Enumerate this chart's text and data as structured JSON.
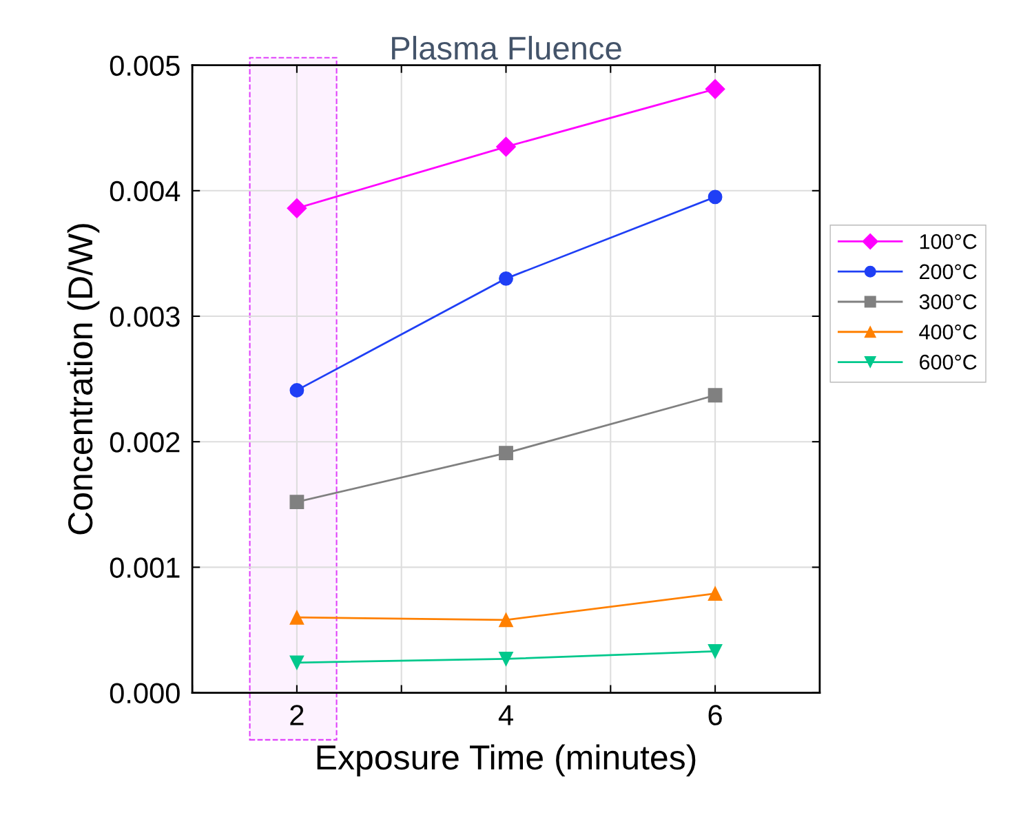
{
  "chart_data": {
    "type": "line",
    "title": "Plasma Fluence",
    "xlabel": "Exposure Time (minutes)",
    "ylabel": "Concentration (D/W)",
    "x": [
      2,
      4,
      6
    ],
    "series": [
      {
        "name": "100°C",
        "color": "#ff00ff",
        "marker": "diamond",
        "values": [
          0.00386,
          0.00435,
          0.00481
        ]
      },
      {
        "name": "200°C",
        "color": "#1f3ff5",
        "marker": "circle",
        "values": [
          0.00241,
          0.0033,
          0.00395
        ]
      },
      {
        "name": "300°C",
        "color": "#808080",
        "marker": "square",
        "values": [
          0.00152,
          0.00191,
          0.00237
        ]
      },
      {
        "name": "400°C",
        "color": "#ff8000",
        "marker": "triangle",
        "values": [
          0.0006,
          0.00058,
          0.00079
        ]
      },
      {
        "name": "600°C",
        "color": "#00c88c",
        "marker": "triangle_down",
        "values": [
          0.00024,
          0.00027,
          0.00033
        ]
      }
    ],
    "xlim": [
      1,
      7
    ],
    "xticks": [
      {
        "value": 1,
        "label": null
      },
      2,
      {
        "value": 3,
        "label": null
      },
      4,
      {
        "value": 5,
        "label": null
      },
      6
    ],
    "ylim": [
      0,
      0.005
    ],
    "yticks": [
      {
        "value": 0,
        "label": "0.000"
      },
      {
        "value": 0.001,
        "label": "0.001"
      },
      {
        "value": 0.002,
        "label": "0.002"
      },
      {
        "value": 0.003,
        "label": "0.003"
      },
      {
        "value": 0.004,
        "label": "0.004"
      },
      {
        "value": 0.005,
        "label": "0.005"
      }
    ],
    "bands": [
      {
        "axis": "x",
        "from": 1.55,
        "to": 2.38,
        "color": "#e040fb"
      }
    ],
    "grid": true,
    "legend": "right",
    "line_style": "solid"
  }
}
